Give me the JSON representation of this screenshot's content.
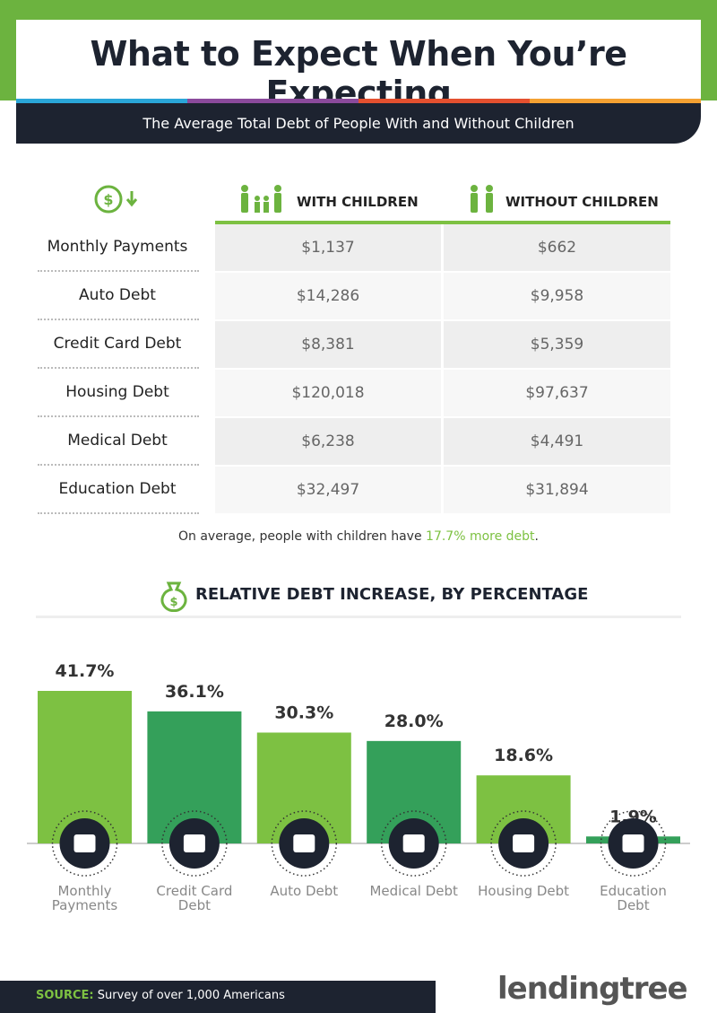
{
  "header": {
    "title": "What to Expect When You’re Expecting",
    "subtitle": "The Average Total Debt of People With and Without Children"
  },
  "table": {
    "columns": [
      "WITH CHILDREN",
      "WITHOUT CHILDREN"
    ],
    "rows": [
      [
        "Monthly Payments",
        "$1,137",
        "$662"
      ],
      [
        "Auto Debt",
        "$14,286",
        "$9,958"
      ],
      [
        "Credit Card Debt",
        "$8,381",
        "$5,359"
      ],
      [
        "Housing Debt",
        "$120,018",
        "$97,637"
      ],
      [
        "Medical Debt",
        "$6,238",
        "$4,491"
      ],
      [
        "Education Debt",
        "$32,497",
        "$31,894"
      ]
    ]
  },
  "note": {
    "before": "On average, people with children have ",
    "highlight": "17.7% more debt",
    "after": "."
  },
  "chart_data": {
    "type": "bar",
    "title": "RELATIVE DEBT INCREASE, BY PERCENTAGE",
    "categories": [
      "Monthly Payments",
      "Credit Card Debt",
      "Auto Debt",
      "Medical Debt",
      "Housing Debt",
      "Education Debt"
    ],
    "values": [
      41.7,
      36.1,
      30.3,
      28.0,
      18.6,
      1.9
    ],
    "value_labels": [
      "41.7%",
      "36.1%",
      "30.3%",
      "28.0%",
      "18.6%",
      "1.9%"
    ],
    "colors": [
      "#7dc142",
      "#34a05a",
      "#7dc142",
      "#34a05a",
      "#7dc142",
      "#34a05a"
    ]
  },
  "source": {
    "label": "SOURCE:",
    "text": "Survey of over 1,000 Americans"
  },
  "logo": "lendingtree"
}
